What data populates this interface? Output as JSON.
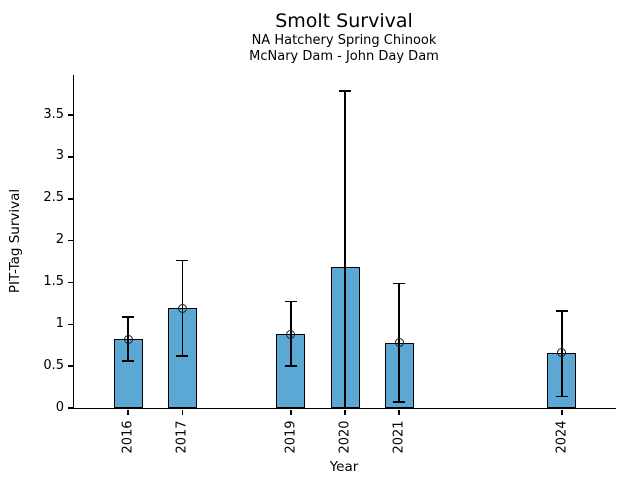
{
  "figure": {
    "title": "Smolt Survival",
    "subtitle_line1": "NA Hatchery Spring Chinook",
    "subtitle_line2": "McNary Dam - John Day Dam"
  },
  "chart_data": {
    "type": "bar",
    "title": "Smolt Survival",
    "subtitle": [
      "NA Hatchery Spring Chinook",
      "McNary Dam - John Day Dam"
    ],
    "xlabel": "Year",
    "ylabel": "PIT-Tag Survival",
    "categories": [
      2016,
      2017,
      2019,
      2020,
      2021,
      2024
    ],
    "series": [
      {
        "name": "PIT-Tag Survival",
        "values": [
          0.82,
          1.19,
          0.88,
          1.69,
          0.78,
          0.66
        ],
        "error_upper": [
          1.09,
          1.76,
          1.27,
          3.79,
          1.49,
          1.16
        ],
        "error_lower": [
          0.56,
          0.62,
          0.5,
          0.0,
          0.07,
          0.14
        ],
        "point_marker": [
          true,
          true,
          true,
          false,
          true,
          true
        ]
      }
    ],
    "xlim": [
      2015,
      2025
    ],
    "ylim": [
      0,
      3.98
    ],
    "yticks": [
      0,
      0.5,
      1,
      1.5,
      2,
      2.5,
      3,
      3.5
    ],
    "ytick_labels": [
      "0",
      "0.5",
      "1",
      "1.5",
      "2",
      "2.5",
      "3",
      "3.5"
    ],
    "bar_color": "#5BA8D4",
    "edge_color": "#000000",
    "grid": false,
    "legend": false
  }
}
